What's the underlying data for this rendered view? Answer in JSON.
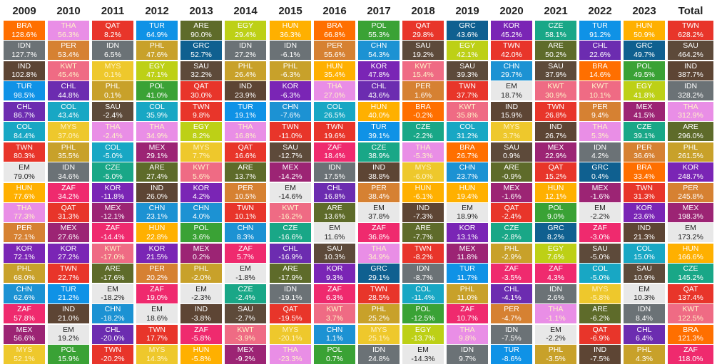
{
  "chart_data": {
    "type": "table",
    "years": [
      "2009",
      "2010",
      "2011",
      "2012",
      "2013",
      "2014",
      "2015",
      "2016",
      "2017",
      "2018",
      "2019",
      "2020",
      "2021",
      "2022",
      "2023"
    ],
    "total_label": "Total",
    "colors": {
      "BRA": "#ff6f00",
      "THA": "#e98ee6",
      "QAT": "#e8352a",
      "TUR": "#0f92e6",
      "ARE": "#5e6b2a",
      "EGY": "#bdd016",
      "HUN": "#ffb000",
      "POL": "#3aa235",
      "GRC": "#0f6090",
      "KOR": "#7a25b5",
      "CZE": "#19a787",
      "IDN": "#6b7276",
      "PER": "#d68132",
      "CHN": "#1c92d3",
      "PHL": "#c8a12a",
      "SAU": "#5d4a3a",
      "TWN": "#e8352a",
      "IND": "#5d4534",
      "MYS": "#eec82c",
      "CHL": "#6c2cb0",
      "COL": "#18a7c4",
      "KWT": "#ef6b84",
      "MEX": "#9c2474",
      "ZAF": "#ef2a6e",
      "EM": "#e8e8e8"
    },
    "columns": [
      [
        [
          "BRA",
          "128.6%"
        ],
        [
          "IDN",
          "127.7%"
        ],
        [
          "IND",
          "102.8%"
        ],
        [
          "TUR",
          "98.5%"
        ],
        [
          "CHL",
          "86.7%"
        ],
        [
          "COL",
          "84.4%"
        ],
        [
          "TWN",
          "80.3%"
        ],
        [
          "EM",
          "79.0%"
        ],
        [
          "HUN",
          "77.6%"
        ],
        [
          "THA",
          "77.3%"
        ],
        [
          "PER",
          "72.1%"
        ],
        [
          "KOR",
          "72.1%"
        ],
        [
          "PHL",
          "68.0%"
        ],
        [
          "CHN",
          "62.6%"
        ],
        [
          "ZAF",
          "57.8%"
        ],
        [
          "MEX",
          "56.6%"
        ],
        [
          "MYS",
          "52.1%"
        ]
      ],
      [
        [
          "THA",
          "56.3%"
        ],
        [
          "PER",
          "53.4%"
        ],
        [
          "KWT",
          "45.4%"
        ],
        [
          "CHL",
          "44.8%"
        ],
        [
          "COL",
          "43.4%"
        ],
        [
          "MYS",
          "37.0%"
        ],
        [
          "PHL",
          "35.5%"
        ],
        [
          "IDN",
          "34.6%"
        ],
        [
          "ZAF",
          "34.2%"
        ],
        [
          "QAT",
          "31.3%"
        ],
        [
          "MEX",
          "27.6%"
        ],
        [
          "KOR",
          "27.2%"
        ],
        [
          "TWN",
          "22.7%"
        ],
        [
          "TUR",
          "21.2%"
        ],
        [
          "IND",
          "21.0%"
        ],
        [
          "EM",
          "19.2%"
        ],
        [
          "POL",
          "15.9%"
        ]
      ],
      [
        [
          "QAT",
          "8.2%"
        ],
        [
          "IDN",
          "6.5%"
        ],
        [
          "MYS",
          "0.1%"
        ],
        [
          "PHL",
          "0.1%"
        ],
        [
          "SAU",
          "-2.4%"
        ],
        [
          "THA",
          "-2.4%"
        ],
        [
          "COL",
          "-5.0%"
        ],
        [
          "CZE",
          "-5.0%"
        ],
        [
          "KOR",
          "-11.8%"
        ],
        [
          "MEX",
          "-12.1%"
        ],
        [
          "ZAF",
          "-14.4%"
        ],
        [
          "KWT",
          "-17.0%"
        ],
        [
          "ARE",
          "-17.6%"
        ],
        [
          "EM",
          "-18.2%"
        ],
        [
          "CHN",
          "-18.2%"
        ],
        [
          "CHL",
          "-20.0%"
        ],
        [
          "TWN",
          "-20.2%"
        ]
      ],
      [
        [
          "TUR",
          "64.9%"
        ],
        [
          "PHL",
          "47.6%"
        ],
        [
          "EGY",
          "47.1%"
        ],
        [
          "POL",
          "41.0%"
        ],
        [
          "COL",
          "35.9%"
        ],
        [
          "THA",
          "34.9%"
        ],
        [
          "MEX",
          "29.1%"
        ],
        [
          "ARE",
          "27.4%"
        ],
        [
          "IND",
          "26.0%"
        ],
        [
          "CHN",
          "23.1%"
        ],
        [
          "HUN",
          "22.8%"
        ],
        [
          "KOR",
          "21.5%"
        ],
        [
          "PER",
          "20.2%"
        ],
        [
          "ZAF",
          "19.0%"
        ],
        [
          "EM",
          "18.6%"
        ],
        [
          "TWN",
          "17.7%"
        ],
        [
          "MYS",
          "14.3%"
        ]
      ],
      [
        [
          "ARE",
          "90.0%"
        ],
        [
          "GRC",
          "52.7%"
        ],
        [
          "SAU",
          "32.2%"
        ],
        [
          "QAT",
          "30.0%"
        ],
        [
          "TWN",
          "9.8%"
        ],
        [
          "EGY",
          "8.2%"
        ],
        [
          "MYS",
          "7.7%"
        ],
        [
          "KWT",
          "5.6%"
        ],
        [
          "KOR",
          "4.2%"
        ],
        [
          "CHN",
          "4.0%"
        ],
        [
          "POL",
          "3.6%"
        ],
        [
          "MEX",
          "0.2%"
        ],
        [
          "PHL",
          "-2.0%"
        ],
        [
          "EM",
          "-2.3%"
        ],
        [
          "IND",
          "-3.8%"
        ],
        [
          "ZAF",
          "-5.8%"
        ],
        [
          "HUN",
          "-5.8%"
        ]
      ],
      [
        [
          "EGY",
          "29.4%"
        ],
        [
          "IDN",
          "27.2%"
        ],
        [
          "PHL",
          "26.4%"
        ],
        [
          "IND",
          "23.9%"
        ],
        [
          "TUR",
          "19.1%"
        ],
        [
          "THA",
          "16.8%"
        ],
        [
          "QAT",
          "16.6%"
        ],
        [
          "ARE",
          "13.7%"
        ],
        [
          "PER",
          "10.5%"
        ],
        [
          "TWN",
          "10.1%"
        ],
        [
          "CHN",
          "8.3%"
        ],
        [
          "ZAF",
          "5.7%"
        ],
        [
          "EM",
          "-1.8%"
        ],
        [
          "CZE",
          "-2.4%"
        ],
        [
          "SAU",
          "-2.7%"
        ],
        [
          "KWT",
          "-3.9%"
        ],
        [
          "MEX",
          "-9.2%"
        ]
      ],
      [
        [
          "HUN",
          "36.3%"
        ],
        [
          "IDN",
          "-6.1%"
        ],
        [
          "PHL",
          "-6.3%"
        ],
        [
          "KOR",
          "-6.3%"
        ],
        [
          "CHN",
          "-7.6%"
        ],
        [
          "TWN",
          "-11.0%"
        ],
        [
          "SAU",
          "-12.7%"
        ],
        [
          "MEX",
          "-14.2%"
        ],
        [
          "EM",
          "-14.6%"
        ],
        [
          "KWT",
          "-16.2%"
        ],
        [
          "CZE",
          "-16.6%"
        ],
        [
          "CHL",
          "-16.9%"
        ],
        [
          "ARE",
          "-17.9%"
        ],
        [
          "IDN",
          "-19.1%"
        ],
        [
          "QAT",
          "-19.5%"
        ],
        [
          "MYS",
          "-20.1%"
        ],
        [
          "THA",
          "-23.3%"
        ]
      ],
      [
        [
          "BRA",
          "66.8%"
        ],
        [
          "PER",
          "55.6%"
        ],
        [
          "HUN",
          "35.4%"
        ],
        [
          "THA",
          "27.0%"
        ],
        [
          "COL",
          "26.5%"
        ],
        [
          "TWN",
          "19.6%"
        ],
        [
          "ZAF",
          "18.4%"
        ],
        [
          "IDN",
          "17.5%"
        ],
        [
          "CHL",
          "16.8%"
        ],
        [
          "ARE",
          "13.6%"
        ],
        [
          "EM",
          "11.6%"
        ],
        [
          "SAU",
          "10.3%"
        ],
        [
          "KOR",
          "9.3%"
        ],
        [
          "ZAF",
          "6.3%"
        ],
        [
          "KWT",
          "3.7%"
        ],
        [
          "CHN",
          "1.1%"
        ],
        [
          "POL",
          "0.7%"
        ]
      ],
      [
        [
          "POL",
          "55.3%"
        ],
        [
          "CHN",
          "54.3%"
        ],
        [
          "KOR",
          "47.8%"
        ],
        [
          "CHL",
          "43.6%"
        ],
        [
          "HUN",
          "40.0%"
        ],
        [
          "TUR",
          "39.1%"
        ],
        [
          "CZE",
          "38.9%"
        ],
        [
          "IND",
          "38.8%"
        ],
        [
          "PER",
          "38.4%"
        ],
        [
          "EM",
          "37.8%"
        ],
        [
          "ZAF",
          "36.8%"
        ],
        [
          "THA",
          "34.9%"
        ],
        [
          "GRC",
          "29.1%"
        ],
        [
          "TWN",
          "28.5%"
        ],
        [
          "PHL",
          "25.2%"
        ],
        [
          "MYS",
          "25.1%"
        ],
        [
          "IDN",
          "24.8%"
        ]
      ],
      [
        [
          "QAT",
          "29.8%"
        ],
        [
          "SAU",
          "19.2%"
        ],
        [
          "KWT",
          "15.4%"
        ],
        [
          "PER",
          "1.6%"
        ],
        [
          "BRA",
          "-0.2%"
        ],
        [
          "CZE",
          "-2.2%"
        ],
        [
          "THA",
          "-5.3%"
        ],
        [
          "MYS",
          "-6.0%"
        ],
        [
          "HUN",
          "-6.1%"
        ],
        [
          "IND",
          "-7.3%"
        ],
        [
          "ARE",
          "-7.7%"
        ],
        [
          "TWN",
          "-8.2%"
        ],
        [
          "IDN",
          "-8.7%"
        ],
        [
          "COL",
          "-11.4%"
        ],
        [
          "POL",
          "-12.5%"
        ],
        [
          "EGY",
          "-13.7%"
        ],
        [
          "EM",
          "-14.3%"
        ]
      ],
      [
        [
          "GRC",
          "43.6%"
        ],
        [
          "EGY",
          "42.1%"
        ],
        [
          "SAU",
          "39.3%"
        ],
        [
          "TWN",
          "37.7%"
        ],
        [
          "KWT",
          "35.8%"
        ],
        [
          "COL",
          "31.2%"
        ],
        [
          "BRA",
          "26.7%"
        ],
        [
          "CHN",
          "23.7%"
        ],
        [
          "HUN",
          "19.4%"
        ],
        [
          "EM",
          "18.9%"
        ],
        [
          "KOR",
          "13.1%"
        ],
        [
          "MEX",
          "11.8%"
        ],
        [
          "TUR",
          "11.7%"
        ],
        [
          "PHL",
          "11.0%"
        ],
        [
          "ZAF",
          "10.7%"
        ],
        [
          "THA",
          "9.8%"
        ],
        [
          "IDN",
          "9.7%"
        ]
      ],
      [
        [
          "KOR",
          "45.2%"
        ],
        [
          "TWN",
          "42.0%"
        ],
        [
          "CHN",
          "29.7%"
        ],
        [
          "EM",
          "18.7%"
        ],
        [
          "IND",
          "15.9%"
        ],
        [
          "MYS",
          "3.7%"
        ],
        [
          "SAU",
          "0.9%"
        ],
        [
          "ARE",
          "-0.9%"
        ],
        [
          "MEX",
          "-1.6%"
        ],
        [
          "QAT",
          "-2.4%"
        ],
        [
          "CZE",
          "-2.8%"
        ],
        [
          "PHL",
          "-2.9%"
        ],
        [
          "ZAF",
          "-3.5%"
        ],
        [
          "CHL",
          "-4.1%"
        ],
        [
          "PER",
          "-4.7%"
        ],
        [
          "IDN",
          "-7.5%"
        ],
        [
          "TUR",
          "-8.6%"
        ]
      ],
      [
        [
          "CZE",
          "58.1%"
        ],
        [
          "ARE",
          "50.2%"
        ],
        [
          "SAU",
          "37.9%"
        ],
        [
          "KWT",
          "30.9%"
        ],
        [
          "TWN",
          "26.8%"
        ],
        [
          "IND",
          "26.7%"
        ],
        [
          "MEX",
          "22.9%"
        ],
        [
          "QAT",
          "15.2%"
        ],
        [
          "HUN",
          "12.1%"
        ],
        [
          "POL",
          "9.0%"
        ],
        [
          "GRC",
          "8.2%"
        ],
        [
          "EGY",
          "7.6%"
        ],
        [
          "ZAF",
          "4.3%"
        ],
        [
          "IDN",
          "2.6%"
        ],
        [
          "THA",
          "-1.1%"
        ],
        [
          "EM",
          "-2.2%"
        ],
        [
          "PHL",
          "-3.5%"
        ]
      ],
      [
        [
          "TUR",
          "91.2%"
        ],
        [
          "CHL",
          "22.6%"
        ],
        [
          "BRA",
          "14.6%"
        ],
        [
          "KWT",
          "10.1%"
        ],
        [
          "PER",
          "9.4%"
        ],
        [
          "THA",
          "5.3%"
        ],
        [
          "IDN",
          "4.2%"
        ],
        [
          "GRC",
          "0.4%"
        ],
        [
          "MEX",
          "-1.6%"
        ],
        [
          "EM",
          "-2.2%"
        ],
        [
          "ZAF",
          "-3.0%"
        ],
        [
          "SAU",
          "-5.0%"
        ],
        [
          "COL",
          "-5.0%"
        ],
        [
          "MYS",
          "-5.8%"
        ],
        [
          "ARE",
          "-6.2%"
        ],
        [
          "QAT",
          "-6.9%"
        ],
        [
          "IND",
          "-7.5%"
        ]
      ],
      [
        [
          "HUN",
          "50.9%"
        ],
        [
          "GRC",
          "49.7%"
        ],
        [
          "POL",
          "49.5%"
        ],
        [
          "EGY",
          "41.8%"
        ],
        [
          "MEX",
          "41.5%"
        ],
        [
          "CZE",
          "39.1%"
        ],
        [
          "PER",
          "36.6%"
        ],
        [
          "BRA",
          "33.4%"
        ],
        [
          "TWN",
          "31.3%"
        ],
        [
          "KOR",
          "23.6%"
        ],
        [
          "IND",
          "21.3%"
        ],
        [
          "COL",
          "15.0%"
        ],
        [
          "SAU",
          "10.9%"
        ],
        [
          "EM",
          "10.3%"
        ],
        [
          "IDN",
          "8.4%"
        ],
        [
          "CHL",
          "6.4%"
        ],
        [
          "PHL",
          "4.3%"
        ]
      ]
    ],
    "total": [
      [
        "TWN",
        "628.2%"
      ],
      [
        "SAU",
        "464.2%"
      ],
      [
        "IND",
        "387.7%"
      ],
      [
        "IDN",
        "328.2%"
      ],
      [
        "THA",
        "312.9%"
      ],
      [
        "ARE",
        "296.0%"
      ],
      [
        "PHL",
        "261.5%"
      ],
      [
        "KOR",
        "248.7%"
      ],
      [
        "PER",
        "245.8%"
      ],
      [
        "MEX",
        "198.3%"
      ],
      [
        "EM",
        "173.2%"
      ],
      [
        "HUN",
        "166.6%"
      ],
      [
        "CZE",
        "145.2%"
      ],
      [
        "QAT",
        "137.4%"
      ],
      [
        "KWT",
        "122.5%"
      ],
      [
        "BRA",
        "121.3%"
      ],
      [
        "ZAF",
        "118.0%"
      ]
    ]
  }
}
